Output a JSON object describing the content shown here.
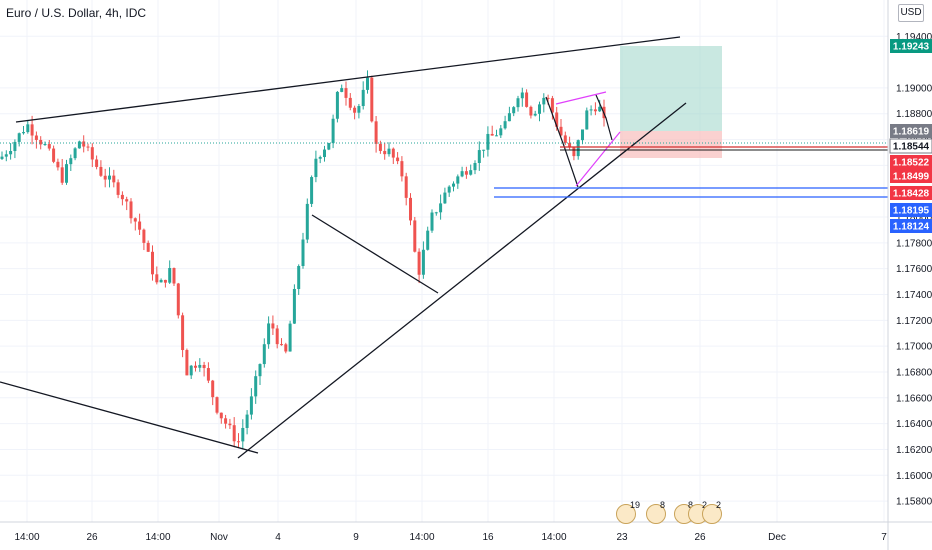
{
  "header": {
    "title": "Euro / U.S. Dollar, 4h, IDC",
    "currency_button": "USD"
  },
  "colors": {
    "bull": "#26a69a",
    "bear": "#ef5350",
    "trendline": "#131722",
    "wedge": "#e040fb",
    "hline": "#2962ff",
    "target_zone": "#9dd5c9",
    "stop_zone": "#f8b9b7",
    "grid": "#f0f3fa",
    "axis_text": "#131722"
  },
  "chart_data": {
    "type": "candlestick",
    "symbol": "EURUSD",
    "interval": "4h",
    "ylim": [
      1.157,
      1.1965
    ],
    "y_ticks": [
      "1.19400",
      "1.19000",
      "1.18800",
      "1.18600",
      "1.18400",
      "1.18000",
      "1.17800",
      "1.17600",
      "1.17400",
      "1.17200",
      "1.17000",
      "1.16800",
      "1.16600",
      "1.16400",
      "1.16200",
      "1.16000",
      "1.15800"
    ],
    "x_ticks": [
      "14:00",
      "26",
      "14:00",
      "Nov",
      "4",
      "9",
      "14:00",
      "16",
      "14:00",
      "23",
      "26",
      "Dec",
      "7"
    ],
    "price_labels": [
      {
        "value": "1.19243",
        "kind": "target"
      },
      {
        "value": "1.18619",
        "kind": "last"
      },
      {
        "value": "1.18544",
        "kind": "entry"
      },
      {
        "value": "1.18522",
        "kind": "stop"
      },
      {
        "value": "1.18499",
        "kind": "stop"
      },
      {
        "value": "1.18428",
        "kind": "stop"
      },
      {
        "value": "1.18195",
        "kind": "support"
      },
      {
        "value": "1.18124",
        "kind": "support"
      }
    ],
    "events": [
      {
        "icon": "event-flag-icon",
        "count": "19"
      },
      {
        "icon": "event-flag-icon",
        "count": "8"
      },
      {
        "icon": "event-flag-icon",
        "count": "8"
      },
      {
        "icon": "event-flag-icon",
        "count": "2"
      },
      {
        "icon": "event-flag-icon",
        "count": "2"
      }
    ]
  }
}
